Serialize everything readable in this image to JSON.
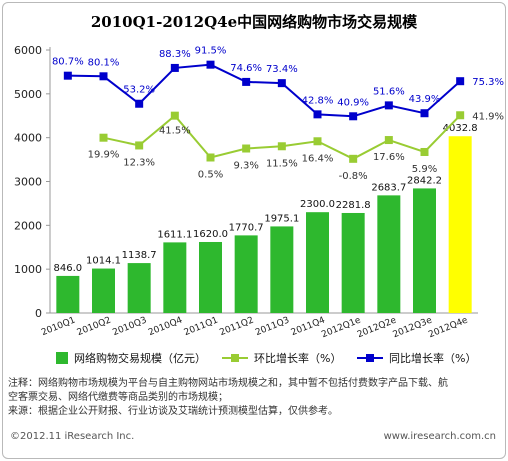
{
  "chart_data": {
    "type": "bar",
    "title": "2010Q1-2012Q4e中国网络购物市场交易规模",
    "categories": [
      "2010Q1",
      "2010Q2",
      "2010Q3",
      "2010Q4",
      "2011Q1",
      "2011Q2",
      "2011Q3",
      "2011Q4",
      "2012Q1e",
      "2012Q2e",
      "2012Q3e",
      "2012Q4e"
    ],
    "ylim": [
      0,
      6000
    ],
    "yticks": [
      0,
      1000,
      2000,
      3000,
      4000,
      5000,
      6000
    ],
    "bars": {
      "name": "网络购物交易规模（亿元）",
      "values": [
        846.0,
        1014.1,
        1138.7,
        1611.1,
        1620.0,
        1770.7,
        1975.1,
        2300.0,
        2281.8,
        2683.7,
        2842.2,
        4032.8
      ],
      "labels": [
        "846.0",
        "1014.1",
        "1138.7",
        "1611.1",
        "1620.0",
        "1770.7",
        "1975.1",
        "2300.0",
        "2281.8",
        "2683.7",
        "2842.2",
        "4032.8"
      ],
      "color": "#2eb82e",
      "highlight_color": "#ffff00"
    },
    "qoq": {
      "name": "环比增长率（%）",
      "labels": [
        "19.9%",
        "12.3%",
        "41.5%",
        "0.5%",
        "9.3%",
        "11.5%",
        "16.4%",
        "-0.8%",
        "17.6%",
        "5.9%",
        "41.9%"
      ],
      "values": [
        19.9,
        12.3,
        41.5,
        0.5,
        9.3,
        11.5,
        16.4,
        -0.8,
        17.6,
        5.9,
        41.9
      ],
      "color": "#99cc33"
    },
    "yoy": {
      "name": "同比增长率（%）",
      "labels": [
        "80.7%",
        "80.1%",
        "53.2%",
        "88.3%",
        "91.5%",
        "74.6%",
        "73.4%",
        "42.8%",
        "40.9%",
        "51.6%",
        "43.9%",
        "75.3%"
      ],
      "values": [
        80.7,
        80.1,
        53.2,
        88.3,
        91.5,
        74.6,
        73.4,
        42.8,
        40.9,
        51.6,
        43.9,
        75.3
      ],
      "color": "#0000cc"
    },
    "grid": false,
    "legend": "bottom"
  },
  "notes": {
    "line1": "注释：网络购物市场规模为平台与自主购物网站市场规模之和，其中暂不包括付费数字产品下载、航",
    "line2": "空客票交易、网络代缴费等商品类别的市场规模；",
    "line3": "来源：根据企业公开财报、行业访谈及艾瑞统计预测模型估算，仅供参考。"
  },
  "footer": {
    "copyright": "©2012.11 iResearch Inc.",
    "website": "www.iresearch.com.cn"
  }
}
